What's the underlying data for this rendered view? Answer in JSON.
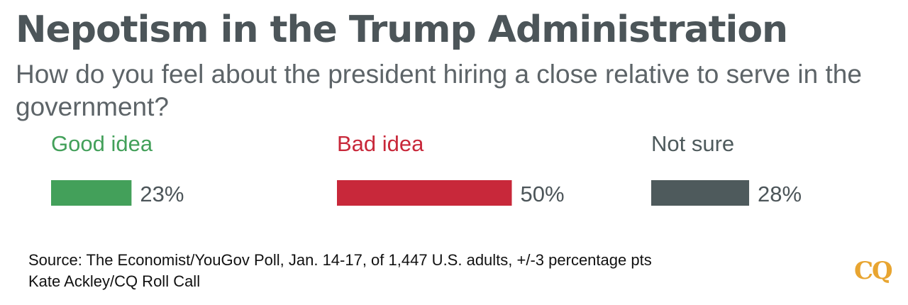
{
  "header": {
    "title": "Nepotism in the Trump Administration",
    "subtitle": "How do you feel about the president hiring a close relative to serve in the government?"
  },
  "chart_data": {
    "type": "bar",
    "categories": [
      "Good idea",
      "Bad idea",
      "Not sure"
    ],
    "values": [
      23,
      50,
      28
    ],
    "value_labels": [
      "23%",
      "50%",
      "28%"
    ],
    "colors": [
      "#43a05a",
      "#c8283a",
      "#4e5a5c"
    ],
    "unit": "%",
    "title": "Nepotism in the Trump Administration",
    "xlabel": "",
    "ylabel": "",
    "ylim": [
      0,
      100
    ],
    "grid": false
  },
  "footer": {
    "source": "Source: The Economist/YouGov Poll, Jan. 14-17, of 1,447 U.S. adults, +/-3 percentage pts",
    "credit": "Kate Ackley/CQ Roll Call",
    "logo": "CQ"
  }
}
